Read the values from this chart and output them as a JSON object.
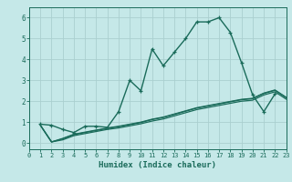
{
  "xlabel": "Humidex (Indice chaleur)",
  "xlim": [
    0,
    23
  ],
  "ylim": [
    -0.3,
    6.5
  ],
  "xticks": [
    0,
    1,
    2,
    3,
    4,
    5,
    6,
    7,
    8,
    9,
    10,
    11,
    12,
    13,
    14,
    15,
    16,
    17,
    18,
    19,
    20,
    21,
    22,
    23
  ],
  "yticks": [
    0,
    1,
    2,
    3,
    4,
    5,
    6
  ],
  "background_color": "#c5e8e8",
  "grid_color": "#aacfcf",
  "line_color": "#1a6b5a",
  "series_main": {
    "x": [
      1,
      2,
      3,
      4,
      5,
      6,
      7,
      8,
      9,
      10,
      11,
      12,
      13,
      14,
      15,
      16,
      17,
      18,
      19,
      20,
      21,
      22
    ],
    "y": [
      0.9,
      0.85,
      0.65,
      0.5,
      0.8,
      0.8,
      0.75,
      1.5,
      3.0,
      2.5,
      4.5,
      3.7,
      4.35,
      5.0,
      5.8,
      5.8,
      6.0,
      5.3,
      3.85,
      2.3,
      1.5,
      2.35
    ]
  },
  "series_linear": [
    {
      "x": [
        1,
        2,
        3,
        4,
        5,
        6,
        7,
        8,
        9,
        10,
        11,
        12,
        13,
        14,
        15,
        16,
        17,
        18,
        19,
        20,
        21,
        22,
        23
      ],
      "y": [
        0.85,
        0.05,
        0.15,
        0.35,
        0.45,
        0.55,
        0.65,
        0.72,
        0.82,
        0.92,
        1.05,
        1.15,
        1.3,
        1.45,
        1.6,
        1.7,
        1.8,
        1.9,
        2.0,
        2.05,
        2.3,
        2.45,
        2.1
      ]
    },
    {
      "x": [
        1,
        2,
        3,
        4,
        5,
        6,
        7,
        8,
        9,
        10,
        11,
        12,
        13,
        14,
        15,
        16,
        17,
        18,
        19,
        20,
        21,
        22,
        23
      ],
      "y": [
        0.85,
        0.05,
        0.2,
        0.4,
        0.5,
        0.6,
        0.7,
        0.78,
        0.88,
        0.98,
        1.12,
        1.22,
        1.37,
        1.52,
        1.67,
        1.77,
        1.87,
        1.97,
        2.07,
        2.12,
        2.37,
        2.52,
        2.17
      ]
    },
    {
      "x": [
        1,
        2,
        3,
        4,
        5,
        6,
        7,
        8,
        9,
        10,
        11,
        12,
        13,
        14,
        15,
        16,
        17,
        18,
        19,
        20,
        21,
        22,
        23
      ],
      "y": [
        0.85,
        0.05,
        0.22,
        0.42,
        0.52,
        0.62,
        0.72,
        0.8,
        0.9,
        1.0,
        1.14,
        1.24,
        1.39,
        1.54,
        1.69,
        1.79,
        1.89,
        1.99,
        2.09,
        2.14,
        2.39,
        2.54,
        2.19
      ]
    }
  ]
}
